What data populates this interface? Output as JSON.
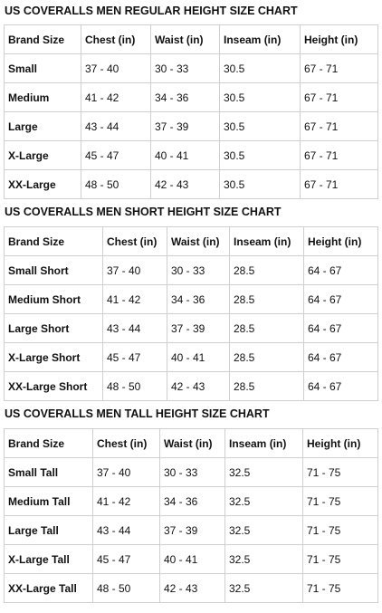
{
  "sections": [
    {
      "title": "US COVERALLS MEN REGULAR HEIGHT SIZE CHART",
      "headers": [
        "Brand Size",
        "Chest (in)",
        "Waist (in)",
        "Inseam (in)",
        "Height (in)"
      ],
      "rows": [
        [
          "Small",
          "37 - 40",
          "30 - 33",
          "30.5",
          "67 - 71"
        ],
        [
          "Medium",
          "41 - 42",
          "34 - 36",
          "30.5",
          "67 - 71"
        ],
        [
          "Large",
          "43 - 44",
          "37 - 39",
          "30.5",
          "67 - 71"
        ],
        [
          "X-Large",
          "45 - 47",
          "40 - 41",
          "30.5",
          "67 - 71"
        ],
        [
          "XX-Large",
          "48 - 50",
          "42 - 43",
          "30.5",
          "67 - 71"
        ]
      ]
    },
    {
      "title": "US COVERALLS MEN SHORT HEIGHT SIZE CHART",
      "headers": [
        "Brand Size",
        "Chest (in)",
        "Waist (in)",
        "Inseam (in)",
        "Height (in)"
      ],
      "rows": [
        [
          "Small Short",
          "37 - 40",
          "30 - 33",
          "28.5",
          "64 - 67"
        ],
        [
          "Medium Short",
          "41 - 42",
          "34 - 36",
          "28.5",
          "64 - 67"
        ],
        [
          "Large Short",
          "43 - 44",
          "37 - 39",
          "28.5",
          "64 - 67"
        ],
        [
          "X-Large Short",
          "45 - 47",
          "40 - 41",
          "28.5",
          "64 - 67"
        ],
        [
          "XX-Large Short",
          "48 - 50",
          "42 - 43",
          "28.5",
          "64 - 67"
        ]
      ]
    },
    {
      "title": "US COVERALLS MEN TALL HEIGHT SIZE CHART",
      "headers": [
        "Brand Size",
        "Chest (in)",
        "Waist (in)",
        "Inseam (in)",
        "Height (in)"
      ],
      "rows": [
        [
          "Small Tall",
          "37 - 40",
          "30 - 33",
          "32.5",
          "71 - 75"
        ],
        [
          "Medium Tall",
          "41 - 42",
          "34 - 36",
          "32.5",
          "71 - 75"
        ],
        [
          "Large Tall",
          "43 - 44",
          "37 - 39",
          "32.5",
          "71 - 75"
        ],
        [
          "X-Large Tall",
          "45 - 47",
          "40 - 41",
          "32.5",
          "71 - 75"
        ],
        [
          "XX-Large Tall",
          "48 - 50",
          "42 - 43",
          "32.5",
          "71 - 75"
        ]
      ]
    }
  ]
}
